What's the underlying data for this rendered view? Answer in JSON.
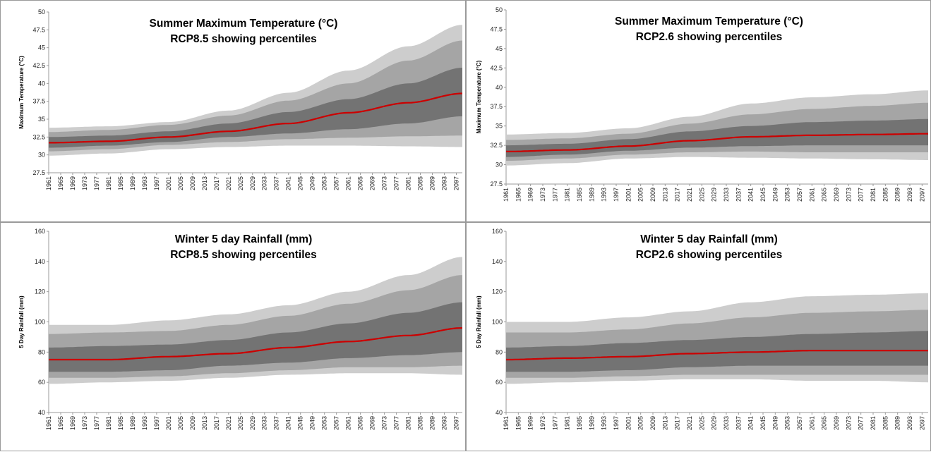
{
  "chart_data": [
    {
      "type": "area",
      "title": "Summer Maximum Temperature (°C)",
      "subtitle": "RCP8.5 showing percentiles",
      "ylabel": "Maximum Temperature (°C)",
      "xlabel": "",
      "ylim": [
        27.5,
        50
      ],
      "yticks": [
        "27.5",
        "30",
        "32.5",
        "35",
        "37.5",
        "40",
        "42.5",
        "45",
        "47.5",
        "50"
      ],
      "x_tick_labels": [
        "1961",
        "1965",
        "1969",
        "1973",
        "1977",
        "1981",
        "1985",
        "1989",
        "1993",
        "1997",
        "2001",
        "2005",
        "2009",
        "2013",
        "2017",
        "2021",
        "2025",
        "2029",
        "2033",
        "2037",
        "2041",
        "2045",
        "2049",
        "2053",
        "2057",
        "2061",
        "2065",
        "2069",
        "2073",
        "2077",
        "2081",
        "2085",
        "2089",
        "2093",
        "2097"
      ],
      "x": [
        1961,
        1981,
        2001,
        2021,
        2041,
        2061,
        2081,
        2099
      ],
      "median_color": "#cc0000",
      "band_colors": [
        "#cdcdcd",
        "#a5a5a5",
        "#737373"
      ],
      "series": [
        {
          "values": [
            29.9,
            30.2,
            30.8,
            31.1,
            31.3,
            31.3,
            31.2,
            31.1
          ]
        },
        {
          "values": [
            30.5,
            30.8,
            31.4,
            31.8,
            32.2,
            32.4,
            32.6,
            32.7
          ]
        },
        {
          "values": [
            31.0,
            31.3,
            31.8,
            32.5,
            33.0,
            33.6,
            34.4,
            35.4
          ]
        },
        {
          "values": [
            31.7,
            31.9,
            32.5,
            33.3,
            34.4,
            35.9,
            37.3,
            38.6
          ]
        },
        {
          "values": [
            32.5,
            32.7,
            33.3,
            34.4,
            36.0,
            37.8,
            40.0,
            42.2
          ]
        },
        {
          "values": [
            33.2,
            33.5,
            34.2,
            35.5,
            37.6,
            40.0,
            43.2,
            46.0
          ]
        },
        {
          "values": [
            33.8,
            34.0,
            34.6,
            36.2,
            38.7,
            41.8,
            45.2,
            48.2
          ]
        }
      ]
    },
    {
      "type": "area",
      "title": "Summer Maximum Temperature (°C)",
      "subtitle": "RCP2.6 showing percentiles",
      "ylabel": "Maximum Temperature (°C)",
      "xlabel": "",
      "ylim": [
        27.5,
        50
      ],
      "yticks": [
        "27.5",
        "30",
        "32.5",
        "35",
        "37.5",
        "40",
        "42.5",
        "45",
        "47.5",
        "50"
      ],
      "x_tick_labels": [
        "1961",
        "1965",
        "1969",
        "1973",
        "1977",
        "1981",
        "1985",
        "1989",
        "1993",
        "1997",
        "2001",
        "2005",
        "2009",
        "2013",
        "2017",
        "2021",
        "2025",
        "2029",
        "2033",
        "2037",
        "2041",
        "2045",
        "2049",
        "2053",
        "2057",
        "2061",
        "2065",
        "2069",
        "2073",
        "2077",
        "2081",
        "2085",
        "2089",
        "2093",
        "2097"
      ],
      "x": [
        1961,
        1981,
        2001,
        2021,
        2041,
        2061,
        2081,
        2099
      ],
      "median_color": "#cc0000",
      "band_colors": [
        "#cdcdcd",
        "#a5a5a5",
        "#737373"
      ],
      "series": [
        {
          "values": [
            29.9,
            30.2,
            30.8,
            31.0,
            30.9,
            30.8,
            30.7,
            30.6
          ]
        },
        {
          "values": [
            30.5,
            30.8,
            31.3,
            31.6,
            31.7,
            31.6,
            31.6,
            31.6
          ]
        },
        {
          "values": [
            31.0,
            31.3,
            31.8,
            32.2,
            32.4,
            32.5,
            32.5,
            32.5
          ]
        },
        {
          "values": [
            31.7,
            31.9,
            32.4,
            33.1,
            33.6,
            33.8,
            33.9,
            34.0
          ]
        },
        {
          "values": [
            32.5,
            32.7,
            33.3,
            34.3,
            35.0,
            35.5,
            35.7,
            35.9
          ]
        },
        {
          "values": [
            33.2,
            33.4,
            34.0,
            35.3,
            36.5,
            37.2,
            37.6,
            38.0
          ]
        },
        {
          "values": [
            33.9,
            34.1,
            34.7,
            36.2,
            37.9,
            38.7,
            39.1,
            39.6
          ]
        }
      ]
    },
    {
      "type": "area",
      "title": "Winter 5 day Rainfall (mm)",
      "subtitle": "RCP8.5 showing percentiles",
      "ylabel": "5 Day Rainfall (mm)",
      "xlabel": "",
      "ylim": [
        40,
        160
      ],
      "yticks": [
        "40",
        "60",
        "80",
        "100",
        "120",
        "140",
        "160"
      ],
      "x_tick_labels": [
        "1961",
        "1965",
        "1969",
        "1973",
        "1977",
        "1981",
        "1985",
        "1989",
        "1993",
        "1997",
        "2001",
        "2005",
        "2009",
        "2013",
        "2017",
        "2021",
        "2025",
        "2029",
        "2033",
        "2037",
        "2041",
        "2045",
        "2049",
        "2053",
        "2057",
        "2061",
        "2065",
        "2069",
        "2073",
        "2077",
        "2081",
        "2085",
        "2089",
        "2093",
        "2097"
      ],
      "x": [
        1961,
        1981,
        2001,
        2021,
        2041,
        2061,
        2081,
        2099
      ],
      "median_color": "#cc0000",
      "band_colors": [
        "#cdcdcd",
        "#a5a5a5",
        "#737373"
      ],
      "series": [
        {
          "values": [
            59,
            60,
            61,
            63,
            65,
            66,
            66,
            65
          ]
        },
        {
          "values": [
            63,
            63,
            64,
            66,
            68,
            70,
            70,
            71
          ]
        },
        {
          "values": [
            67,
            67,
            68,
            71,
            73,
            76,
            78,
            80
          ]
        },
        {
          "values": [
            75,
            75,
            77,
            79,
            83,
            87,
            91,
            96
          ]
        },
        {
          "values": [
            83,
            84,
            85,
            88,
            93,
            99,
            106,
            113
          ]
        },
        {
          "values": [
            92,
            93,
            94,
            98,
            104,
            112,
            121,
            131
          ]
        },
        {
          "values": [
            98,
            98,
            101,
            105,
            111,
            120,
            131,
            143
          ]
        }
      ]
    },
    {
      "type": "area",
      "title": "Winter 5 day Rainfall (mm)",
      "subtitle": "RCP2.6 showing percentiles",
      "ylabel": "5 Day Rainfall (mm)",
      "xlabel": "",
      "ylim": [
        40,
        160
      ],
      "yticks": [
        "40",
        "60",
        "80",
        "100",
        "120",
        "140",
        "160"
      ],
      "x_tick_labels": [
        "1961",
        "1965",
        "1969",
        "1973",
        "1977",
        "1981",
        "1985",
        "1989",
        "1993",
        "1997",
        "2001",
        "2005",
        "2009",
        "2013",
        "2017",
        "2021",
        "2025",
        "2029",
        "2033",
        "2037",
        "2041",
        "2045",
        "2049",
        "2053",
        "2057",
        "2061",
        "2065",
        "2069",
        "2073",
        "2077",
        "2081",
        "2085",
        "2089",
        "2093",
        "2097"
      ],
      "x": [
        1961,
        1981,
        2001,
        2021,
        2041,
        2061,
        2081,
        2099
      ],
      "median_color": "#cc0000",
      "band_colors": [
        "#cdcdcd",
        "#a5a5a5",
        "#737373"
      ],
      "series": [
        {
          "values": [
            59,
            60,
            61,
            62,
            62,
            61,
            61,
            60
          ]
        },
        {
          "values": [
            63,
            63,
            64,
            65,
            65,
            65,
            65,
            65
          ]
        },
        {
          "values": [
            67,
            67,
            68,
            70,
            71,
            71,
            71,
            71
          ]
        },
        {
          "values": [
            75,
            76,
            77,
            79,
            80,
            81,
            81,
            81
          ]
        },
        {
          "values": [
            83,
            84,
            86,
            88,
            90,
            92,
            93,
            94
          ]
        },
        {
          "values": [
            93,
            93,
            95,
            99,
            103,
            106,
            107,
            108
          ]
        },
        {
          "values": [
            100,
            100,
            103,
            107,
            113,
            117,
            118,
            119
          ]
        }
      ]
    }
  ]
}
